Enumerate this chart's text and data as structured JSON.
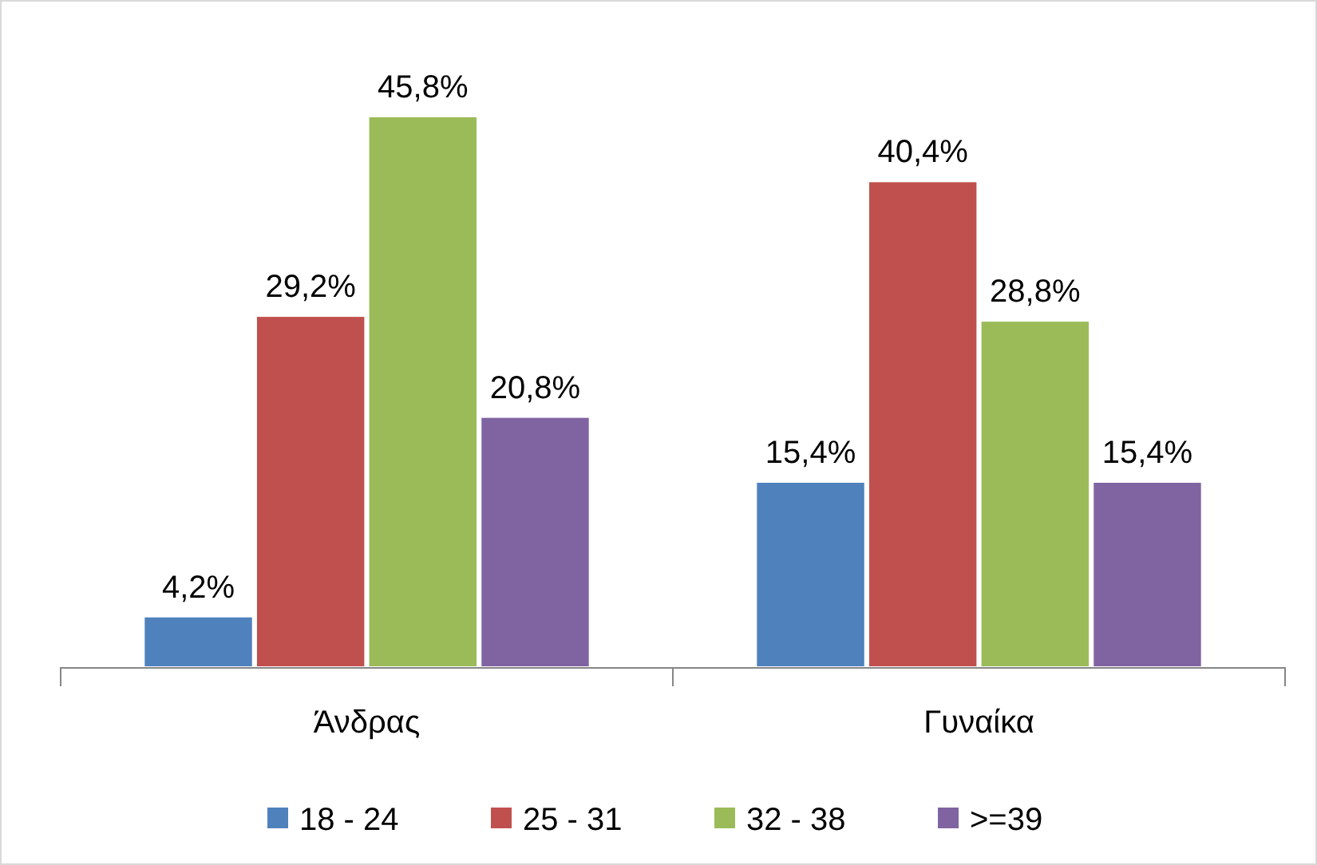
{
  "chart_data": {
    "type": "bar",
    "categories": [
      "Άνδρας",
      "Γυναίκα"
    ],
    "series": [
      {
        "name": "18 - 24",
        "color": "#4f81bd",
        "values": [
          4.2,
          15.4
        ],
        "value_labels": [
          "4,2%",
          "15,4%"
        ]
      },
      {
        "name": "25 - 31",
        "color": "#c0504d",
        "values": [
          29.2,
          40.4
        ],
        "value_labels": [
          "29,2%",
          "40,4%"
        ]
      },
      {
        "name": "32 - 38",
        "color": "#9bbb59",
        "values": [
          45.8,
          28.8
        ],
        "value_labels": [
          "45,8%",
          "28,8%"
        ]
      },
      {
        "name": ">=39",
        "color": "#8064a2",
        "values": [
          20.8,
          15.4
        ],
        "value_labels": [
          "20,8%",
          "15,4%"
        ]
      }
    ],
    "legend": "bottom"
  }
}
